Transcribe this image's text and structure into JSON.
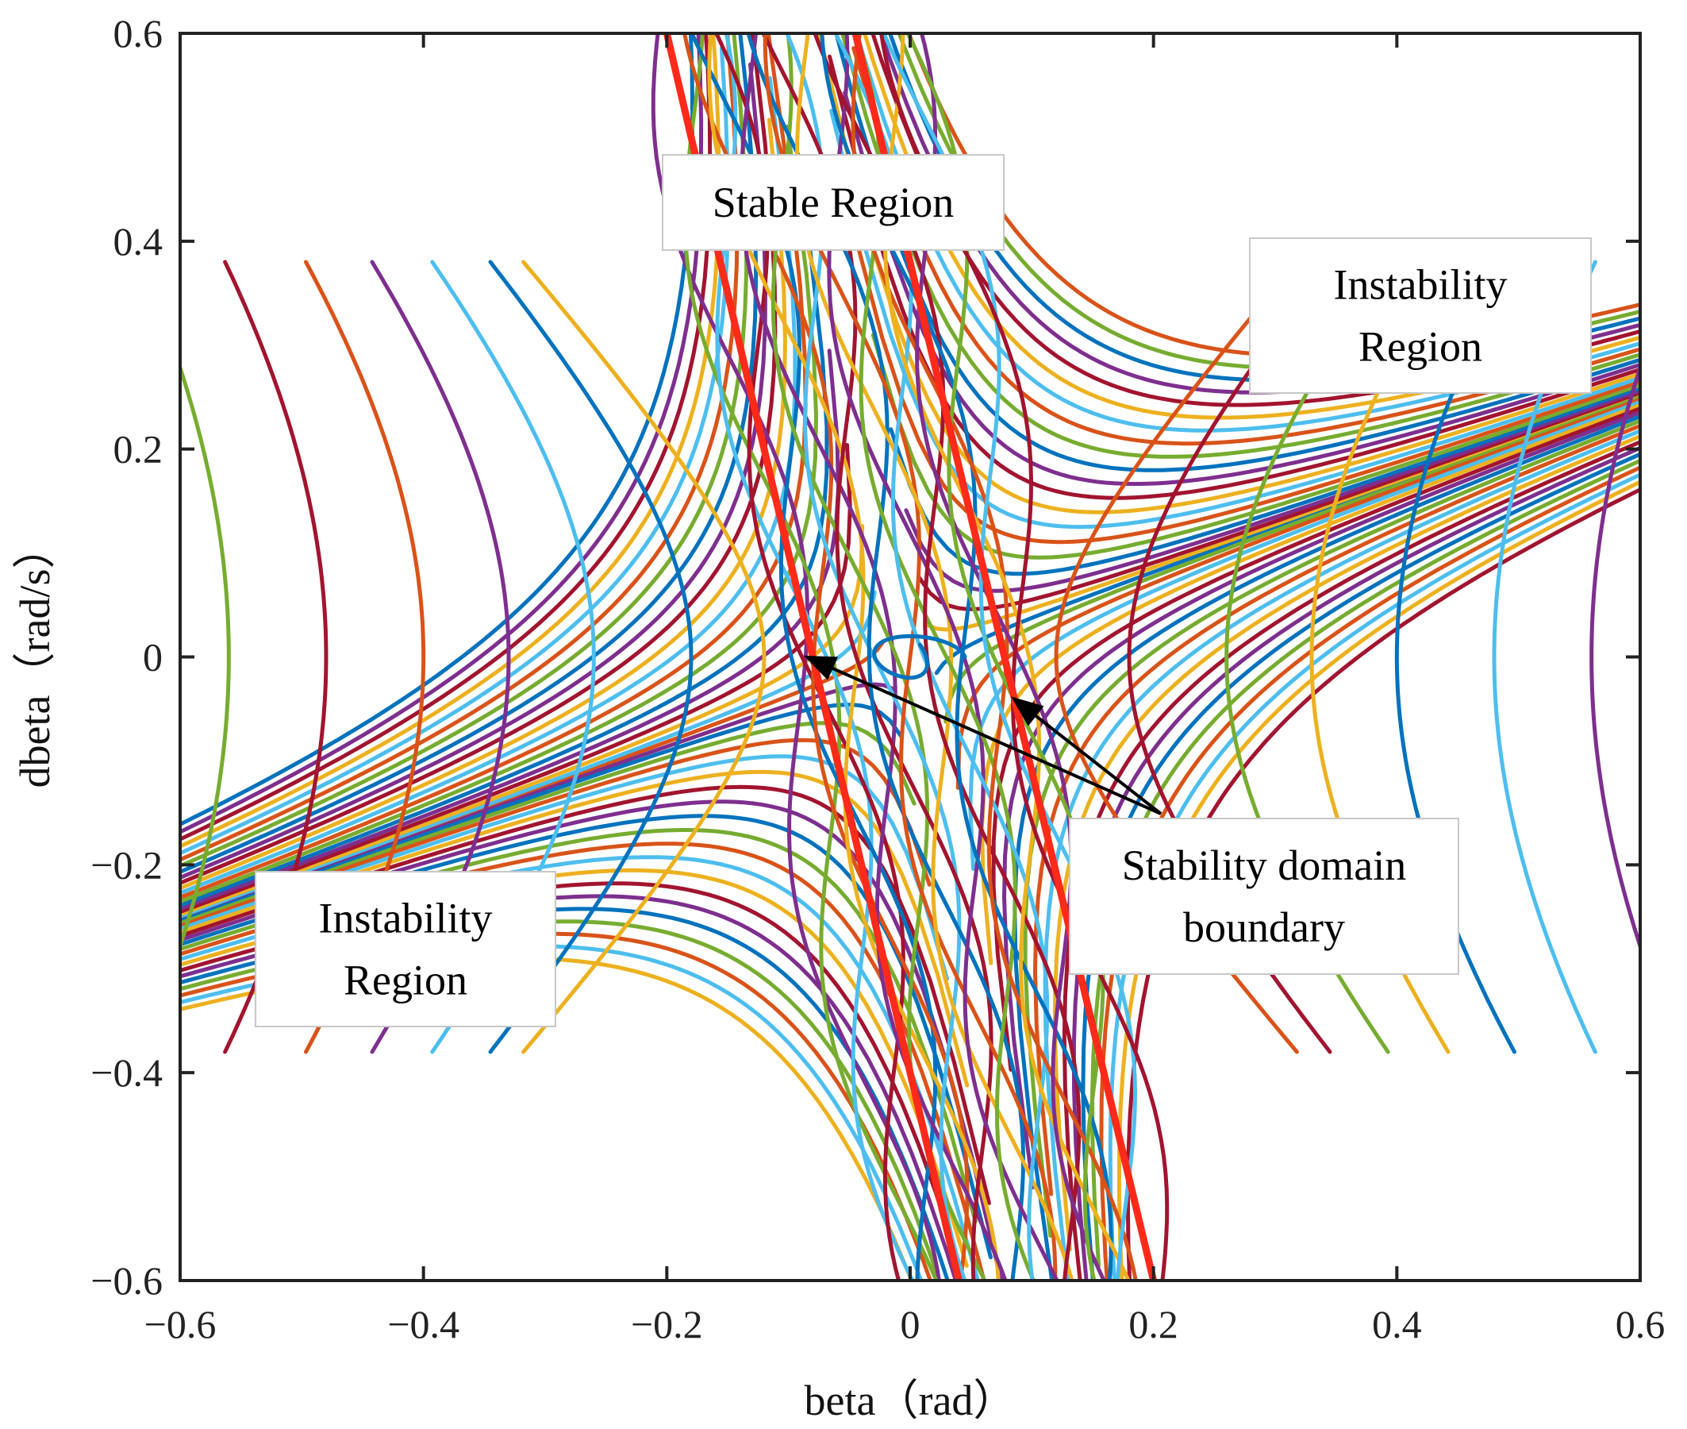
{
  "chart_data": {
    "type": "line",
    "title": "",
    "xlabel": "beta（rad）",
    "ylabel": "dbeta（rad/s）",
    "xlim": [
      -0.6,
      0.6
    ],
    "ylim": [
      -0.6,
      0.6
    ],
    "xticks": [
      -0.6,
      -0.4,
      -0.2,
      0,
      0.2,
      0.4,
      0.6
    ],
    "yticks": [
      -0.6,
      -0.4,
      -0.2,
      0,
      0.2,
      0.4,
      0.6
    ],
    "xtick_labels": [
      "−0.6",
      "−0.4",
      "−0.2",
      "0",
      "0.2",
      "0.4",
      "0.6"
    ],
    "ytick_labels": [
      "−0.6",
      "−0.4",
      "−0.2",
      "0",
      "0.2",
      "0.4",
      "0.6"
    ],
    "grid": false,
    "series_description": "Phase-plane trajectories of sideslip angle beta vs. its rate dbeta, with the stability domain boundary drawn as two red lines",
    "trajectory_colors": [
      "#0072BD",
      "#D95319",
      "#EDB120",
      "#7E2F8E",
      "#77AC30",
      "#4DBEEE",
      "#A2142F"
    ],
    "boundary": {
      "name": "Stability domain boundary",
      "color": "#ff2a1a",
      "lines": [
        {
          "name": "left-boundary",
          "x": [
            -0.2,
            0.04
          ],
          "y": [
            0.6,
            -0.6
          ]
        },
        {
          "name": "right-boundary",
          "x": [
            -0.045,
            0.2
          ],
          "y": [
            0.6,
            -0.6
          ]
        }
      ]
    },
    "annotations": [
      {
        "id": "stable",
        "lines": [
          "Stable Region"
        ]
      },
      {
        "id": "instability_top",
        "lines": [
          "Instability",
          "Region"
        ]
      },
      {
        "id": "instability_bottom",
        "lines": [
          "Instability",
          "Region"
        ]
      },
      {
        "id": "boundary",
        "lines": [
          "Stability domain",
          "boundary"
        ],
        "arrow_targets": [
          [
            -0.085,
            0.0
          ],
          [
            0.085,
            -0.04
          ]
        ]
      }
    ]
  }
}
